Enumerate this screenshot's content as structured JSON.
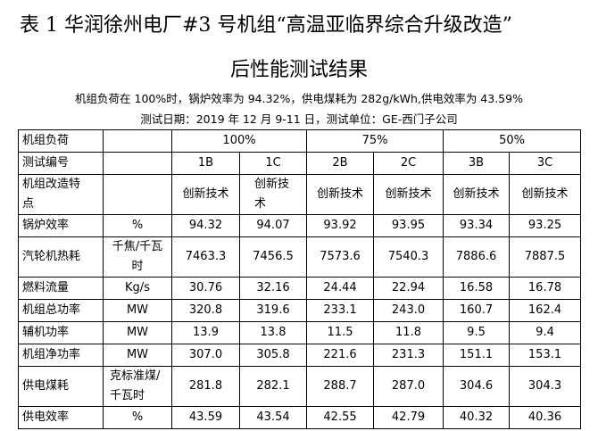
{
  "title": [
    "表 1 华润徐州电厂#3 号机组“高温亚临界综合升级改造”",
    "后性能测试结果"
  ],
  "subtitle": [
    "机组负荷在 100%时，锅炉效率为 94.32%，供电煤耗为 282g/kWh,供电效率为 43.59%",
    "测试日期：2019 年 12 月 9-11 日，测试单位：GE-西门子公司"
  ],
  "table": {
    "load_header": {
      "label": "机组负荷",
      "groups": [
        "100%",
        "75%",
        "50%"
      ]
    },
    "test_header": {
      "label": "测试编号",
      "ids": [
        "1B",
        "1C",
        "2B",
        "2C",
        "3B",
        "3C"
      ]
    },
    "rows": [
      {
        "label": "机组改造特点",
        "values": [
          "创新技术",
          "创新技术",
          "创新技术",
          "创新技术",
          "创新技术",
          "创新技术"
        ]
      },
      {
        "label": "锅炉效率",
        "unit": "%",
        "values": [
          "94.32",
          "94.07",
          "93.92",
          "93.95",
          "93.34",
          "93.25"
        ]
      },
      {
        "label": "汽轮机热耗",
        "unit": "千焦/千瓦时",
        "values": [
          "7463.3",
          "7456.5",
          "7573.6",
          "7540.3",
          "7886.6",
          "7887.5"
        ]
      },
      {
        "label": "燃料流量",
        "unit": "Kg/s",
        "values": [
          "30.76",
          "32.16",
          "24.44",
          "22.94",
          "16.58",
          "16.78"
        ]
      },
      {
        "label": "机组总功率",
        "unit": "MW",
        "values": [
          "320.8",
          "319.6",
          "233.1",
          "243.0",
          "160.7",
          "162.4"
        ]
      },
      {
        "label": "辅机功率",
        "unit": "MW",
        "values": [
          "13.9",
          "13.8",
          "11.5",
          "11.8",
          "9.5",
          "9.4"
        ]
      },
      {
        "label": "机组净功率",
        "unit": "MW",
        "values": [
          "307.0",
          "305.8",
          "221.6",
          "231.3",
          "151.1",
          "153.1"
        ]
      },
      {
        "label": "供电煤耗",
        "unit": "克标准煤/千瓦时",
        "values": [
          "281.8",
          "282.1",
          "288.7",
          "287.0",
          "304.6",
          "304.3"
        ]
      },
      {
        "label": "供电效率",
        "unit": "%",
        "values": [
          "43.59",
          "43.54",
          "42.55",
          "42.79",
          "40.32",
          "40.36"
        ]
      }
    ]
  }
}
